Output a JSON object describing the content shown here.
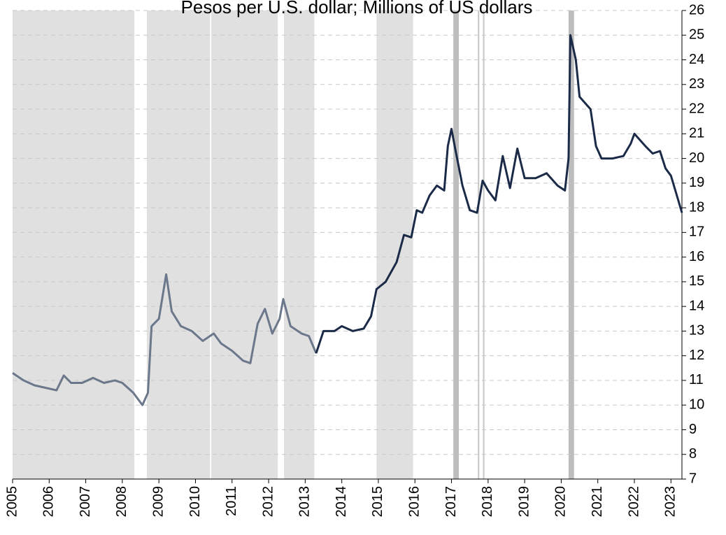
{
  "chart_data": {
    "type": "line",
    "title": "Pesos per U.S. dollar; Millions of US dollars",
    "xlim": [
      2005,
      2023.3
    ],
    "xticks": [
      2005,
      2006,
      2007,
      2008,
      2009,
      2010,
      2011,
      2012,
      2013,
      2014,
      2015,
      2016,
      2017,
      2018,
      2019,
      2020,
      2021,
      2022,
      2023
    ],
    "ylim": [
      7,
      26
    ],
    "yticks": [
      7,
      8,
      9,
      10,
      11,
      12,
      13,
      14,
      15,
      16,
      17,
      18,
      19,
      20,
      21,
      22,
      23,
      24,
      25,
      26
    ],
    "grid": true,
    "shaded_regions": [
      {
        "x": [
          2005,
          2008.33
        ],
        "color": "#e0e0e0"
      },
      {
        "x": [
          2008.67,
          2010.4
        ],
        "color": "#e0e0e0"
      },
      {
        "x": [
          2010.43,
          2012.25
        ],
        "color": "#e0e0e0"
      },
      {
        "x": [
          2012.42,
          2013.25
        ],
        "color": "#e0e0e0"
      },
      {
        "x": [
          2014.95,
          2015.95
        ],
        "color": "#e0e0e0"
      },
      {
        "x": [
          2017.05,
          2017.2
        ],
        "color": "#bdbdbd"
      },
      {
        "x": [
          2017.72,
          2017.76
        ],
        "color": "#c8c8c8"
      },
      {
        "x": [
          2017.86,
          2017.9
        ],
        "color": "#c8c8c8"
      },
      {
        "x": [
          2020.2,
          2020.35
        ],
        "color": "#bdbdbd"
      }
    ],
    "series": [
      {
        "color": "#6b778a",
        "x": [
          2005.0,
          2005.3,
          2005.6,
          2005.9,
          2006.2,
          2006.4,
          2006.6,
          2006.9,
          2007.2,
          2007.5,
          2007.8,
          2008.0,
          2008.3,
          2008.55,
          2008.7,
          2008.8,
          2009.0,
          2009.2,
          2009.35,
          2009.6,
          2009.9,
          2010.2,
          2010.5,
          2010.7,
          2011.0,
          2011.3,
          2011.5,
          2011.7,
          2011.9,
          2012.1,
          2012.3,
          2012.4,
          2012.6,
          2012.9,
          2013.1,
          2013.3
        ],
        "values": [
          11.3,
          11.0,
          10.8,
          10.7,
          10.6,
          11.2,
          10.9,
          10.9,
          11.1,
          10.9,
          11.0,
          10.9,
          10.5,
          10.0,
          10.5,
          13.2,
          13.5,
          15.3,
          13.8,
          13.2,
          13.0,
          12.6,
          12.9,
          12.5,
          12.2,
          11.8,
          11.7,
          13.3,
          13.9,
          12.9,
          13.5,
          14.3,
          13.2,
          12.9,
          12.8,
          12.1
        ]
      },
      {
        "color": "#1b2a47",
        "x": [
          2013.3,
          2013.5,
          2013.8,
          2014.0,
          2014.3,
          2014.6,
          2014.8,
          2014.95,
          2015.2,
          2015.5,
          2015.7,
          2015.9,
          2016.05,
          2016.2,
          2016.4,
          2016.6,
          2016.8,
          2016.9,
          2017.0,
          2017.1,
          2017.3,
          2017.5,
          2017.7,
          2017.85,
          2018.0,
          2018.2,
          2018.4,
          2018.6,
          2018.8,
          2019.0,
          2019.3,
          2019.6,
          2019.9,
          2020.1,
          2020.2,
          2020.25,
          2020.4,
          2020.5,
          2020.8,
          2020.95,
          2021.1,
          2021.4,
          2021.7,
          2021.9,
          2022.0,
          2022.3,
          2022.5,
          2022.7,
          2022.85,
          2023.0,
          2023.2,
          2023.3
        ],
        "values": [
          12.1,
          13.0,
          13.0,
          13.2,
          13.0,
          13.1,
          13.6,
          14.7,
          15.0,
          15.8,
          16.9,
          16.8,
          17.9,
          17.8,
          18.5,
          18.9,
          18.7,
          20.5,
          21.2,
          20.4,
          18.9,
          17.9,
          17.8,
          19.1,
          18.7,
          18.3,
          20.1,
          18.8,
          20.4,
          19.2,
          19.2,
          19.4,
          18.9,
          18.7,
          20.0,
          25.0,
          24.0,
          22.5,
          22.0,
          20.5,
          20.0,
          20.0,
          20.1,
          20.6,
          21.0,
          20.5,
          20.2,
          20.3,
          19.6,
          19.3,
          18.3,
          17.8
        ]
      }
    ]
  }
}
